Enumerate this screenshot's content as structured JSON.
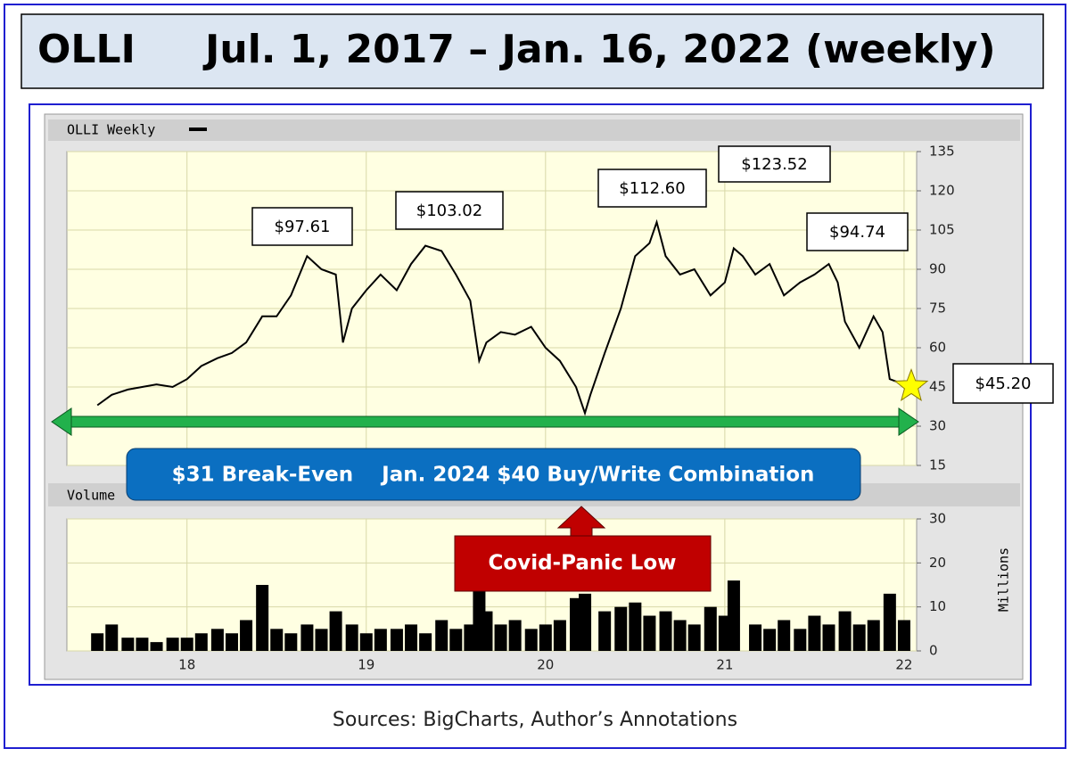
{
  "title": {
    "ticker": "OLLI",
    "period": "Jul. 1, 2017 – Jan. 16, 2022 (weekly)"
  },
  "chart_data": [
    {
      "type": "line",
      "label": "OLLI Weekly",
      "color": "#000000",
      "x": [
        2017.5,
        2017.58,
        2017.67,
        2017.75,
        2017.83,
        2017.92,
        2018.0,
        2018.08,
        2018.17,
        2018.25,
        2018.33,
        2018.42,
        2018.5,
        2018.58,
        2018.67,
        2018.75,
        2018.83,
        2018.87,
        2018.92,
        2019.0,
        2019.08,
        2019.17,
        2019.25,
        2019.33,
        2019.42,
        2019.5,
        2019.58,
        2019.63,
        2019.67,
        2019.75,
        2019.83,
        2019.92,
        2020.0,
        2020.08,
        2020.17,
        2020.22,
        2020.25,
        2020.33,
        2020.42,
        2020.5,
        2020.58,
        2020.62,
        2020.67,
        2020.75,
        2020.83,
        2020.92,
        2021.0,
        2021.05,
        2021.1,
        2021.17,
        2021.25,
        2021.33,
        2021.42,
        2021.5,
        2021.58,
        2021.63,
        2021.67,
        2021.75,
        2021.83,
        2021.88,
        2021.92,
        2022.0,
        2022.04
      ],
      "values": [
        38,
        42,
        44,
        45,
        46,
        45,
        48,
        53,
        56,
        58,
        62,
        72,
        72,
        80,
        95,
        90,
        88,
        62,
        75,
        82,
        88,
        82,
        92,
        99,
        97,
        88,
        78,
        55,
        62,
        66,
        65,
        68,
        60,
        55,
        45,
        35,
        42,
        58,
        75,
        95,
        100,
        108,
        95,
        88,
        90,
        80,
        85,
        98,
        95,
        88,
        92,
        80,
        85,
        88,
        92,
        85,
        70,
        60,
        72,
        66,
        48,
        46,
        45.2
      ],
      "xlim": [
        2017.33,
        2022.07
      ],
      "xticks": [
        {
          "value": 2018,
          "label": "18"
        },
        {
          "value": 2019,
          "label": "19"
        },
        {
          "value": 2020,
          "label": "20"
        },
        {
          "value": 2021,
          "label": "21"
        },
        {
          "value": 2022,
          "label": "22"
        }
      ],
      "ylim": [
        15,
        135
      ],
      "yticks": [
        15,
        30,
        45,
        60,
        75,
        90,
        105,
        120,
        135
      ],
      "grid": true
    },
    {
      "type": "bar",
      "label": "Volume",
      "color": "#000000",
      "axis_label": "Millions",
      "x": [
        2017.5,
        2017.58,
        2017.67,
        2017.75,
        2017.83,
        2017.92,
        2018.0,
        2018.08,
        2018.17,
        2018.25,
        2018.33,
        2018.42,
        2018.5,
        2018.58,
        2018.67,
        2018.75,
        2018.83,
        2018.92,
        2019.0,
        2019.08,
        2019.17,
        2019.25,
        2019.33,
        2019.42,
        2019.5,
        2019.58,
        2019.63,
        2019.67,
        2019.75,
        2019.83,
        2019.92,
        2020.0,
        2020.08,
        2020.17,
        2020.22,
        2020.33,
        2020.42,
        2020.5,
        2020.58,
        2020.67,
        2020.75,
        2020.83,
        2020.92,
        2021.0,
        2021.05,
        2021.17,
        2021.25,
        2021.33,
        2021.42,
        2021.5,
        2021.58,
        2021.67,
        2021.75,
        2021.83,
        2021.92,
        2022.0
      ],
      "values": [
        4,
        6,
        3,
        3,
        2,
        3,
        3,
        4,
        5,
        4,
        7,
        15,
        5,
        4,
        6,
        5,
        9,
        6,
        4,
        5,
        5,
        6,
        4,
        7,
        5,
        6,
        14,
        9,
        6,
        7,
        5,
        6,
        7,
        12,
        13,
        9,
        10,
        11,
        8,
        9,
        7,
        6,
        10,
        8,
        16,
        6,
        5,
        7,
        5,
        8,
        6,
        9,
        6,
        7,
        13,
        7
      ],
      "xlim": [
        2017.33,
        2022.07
      ],
      "xticks": [
        {
          "value": 2018,
          "label": "18"
        },
        {
          "value": 2019,
          "label": "19"
        },
        {
          "value": 2020,
          "label": "20"
        },
        {
          "value": 2021,
          "label": "21"
        },
        {
          "value": 2022,
          "label": "22"
        }
      ],
      "ylim": [
        0,
        30
      ],
      "yticks": [
        0,
        10,
        20,
        30
      ],
      "grid": true
    }
  ],
  "callouts": [
    "$97.61",
    "$103.02",
    "$112.60",
    "$123.52",
    "$94.74",
    "$45.20"
  ],
  "banner": "$31 Break-Even    Jan. 2024 $40 Buy/Write Combination",
  "covid_label": "Covid-Panic Low",
  "source": "Sources: BigCharts, Author’s Annotations"
}
